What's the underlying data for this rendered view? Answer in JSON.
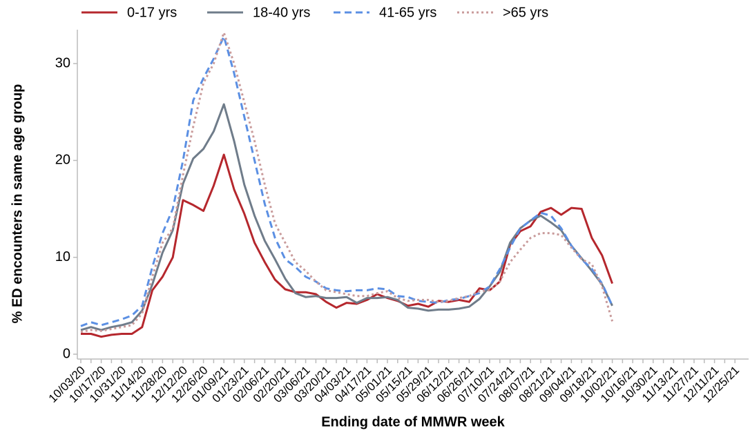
{
  "chart_data": {
    "type": "line",
    "xlabel": "Ending date of MMWR week",
    "ylabel": "% ED encounters in same age group",
    "categories": [
      "10/03/20",
      null,
      "10/17/20",
      null,
      "10/31/20",
      null,
      "11/14/20",
      null,
      "11/28/20",
      null,
      "12/12/20",
      null,
      "12/26/20",
      null,
      "01/09/21",
      null,
      "01/23/21",
      null,
      "02/06/21",
      null,
      "02/20/21",
      null,
      "03/06/21",
      null,
      "03/20/21",
      null,
      "04/03/21",
      null,
      "04/17/21",
      null,
      "05/01/21",
      null,
      "05/15/21",
      null,
      "05/29/21",
      null,
      "06/12/21",
      null,
      "06/26/21",
      null,
      "07/10/21",
      null,
      "07/24/21",
      null,
      "08/07/21",
      null,
      "08/21/21",
      null,
      "09/04/21",
      null,
      "09/18/21",
      null,
      "10/02/21",
      null,
      "10/16/21",
      null,
      "10/30/21",
      null,
      "11/13/21",
      null,
      "11/27/21",
      null,
      "12/11/21",
      null,
      "12/25/21"
    ],
    "series": [
      {
        "name": "0-17 yrs",
        "color": "#b5272d",
        "dash": "solid",
        "values": [
          2.1,
          2.1,
          1.8,
          2.0,
          2.1,
          2.1,
          2.8,
          6.6,
          8.0,
          10.0,
          15.9,
          15.4,
          14.8,
          17.4,
          20.6,
          17.0,
          14.5,
          11.5,
          9.5,
          7.7,
          6.7,
          6.4,
          6.4,
          6.2,
          5.4,
          4.8,
          5.3,
          5.2,
          5.6,
          6.2,
          5.8,
          5.5,
          5.0,
          5.2,
          4.9,
          5.5,
          5.4,
          5.6,
          5.4,
          6.8,
          6.6,
          7.5,
          11.3,
          12.7,
          13.2,
          14.7,
          15.1,
          14.4,
          15.1,
          15.0,
          12.0,
          10.2,
          7.3,
          null,
          null,
          null,
          null,
          null,
          null,
          null,
          null,
          null,
          null,
          null,
          null
        ]
      },
      {
        "name": "18-40 yrs",
        "color": "#6f7c8a",
        "dash": "solid",
        "values": [
          2.5,
          2.8,
          2.5,
          2.8,
          3.0,
          3.3,
          4.5,
          7.2,
          10.5,
          12.8,
          17.6,
          20.2,
          21.2,
          23.0,
          25.8,
          22.0,
          17.5,
          14.3,
          11.7,
          9.8,
          7.8,
          6.3,
          5.9,
          6.0,
          5.8,
          5.8,
          5.9,
          5.3,
          5.8,
          5.8,
          5.9,
          5.6,
          4.8,
          4.7,
          4.5,
          4.6,
          4.6,
          4.7,
          4.9,
          5.7,
          7.0,
          8.5,
          11.5,
          13.0,
          13.8,
          14.3,
          13.6,
          12.8,
          11.2,
          9.9,
          8.6,
          7.2,
          5.0,
          null,
          null,
          null,
          null,
          null,
          null,
          null,
          null,
          null,
          null,
          null,
          null
        ]
      },
      {
        "name": "41-65 yrs",
        "color": "#5b8fe3",
        "dash": "dashed",
        "values": [
          2.9,
          3.3,
          3.0,
          3.3,
          3.6,
          4.0,
          5.0,
          9.0,
          12.5,
          15.0,
          20.0,
          26.2,
          28.5,
          30.5,
          32.8,
          29.0,
          24.5,
          20.0,
          15.5,
          12.0,
          9.8,
          9.0,
          8.0,
          7.5,
          6.8,
          6.6,
          6.5,
          6.6,
          6.6,
          6.8,
          6.7,
          6.0,
          5.9,
          5.5,
          5.4,
          5.3,
          5.6,
          5.7,
          6.0,
          6.3,
          7.0,
          8.8,
          11.0,
          13.0,
          13.8,
          14.6,
          14.3,
          13.0,
          11.2,
          9.8,
          8.8,
          7.3,
          5.0,
          null,
          null,
          null,
          null,
          null,
          null,
          null,
          null,
          null,
          null,
          null,
          null
        ]
      },
      {
        "name": ">65 yrs",
        "color": "#c99b9b",
        "dash": "dotted",
        "values": [
          2.3,
          2.5,
          2.4,
          2.6,
          2.8,
          3.0,
          4.2,
          8.0,
          11.5,
          13.0,
          18.5,
          23.5,
          28.0,
          30.0,
          33.2,
          30.0,
          26.0,
          22.0,
          17.5,
          13.5,
          11.5,
          9.5,
          8.6,
          7.5,
          6.6,
          6.4,
          6.2,
          6.0,
          6.0,
          6.3,
          6.5,
          5.8,
          5.5,
          5.6,
          5.6,
          5.4,
          5.5,
          5.8,
          6.0,
          6.5,
          6.6,
          7.5,
          9.5,
          10.8,
          12.0,
          12.5,
          12.5,
          12.3,
          11.0,
          9.8,
          9.3,
          7.0,
          3.4,
          null,
          null,
          null,
          null,
          null,
          null,
          null,
          null,
          null,
          null,
          null,
          null
        ]
      }
    ],
    "ylim": [
      -0.5,
      33.5
    ],
    "yticks": [
      0,
      10,
      20,
      30
    ],
    "grid": false,
    "legend": "top"
  }
}
